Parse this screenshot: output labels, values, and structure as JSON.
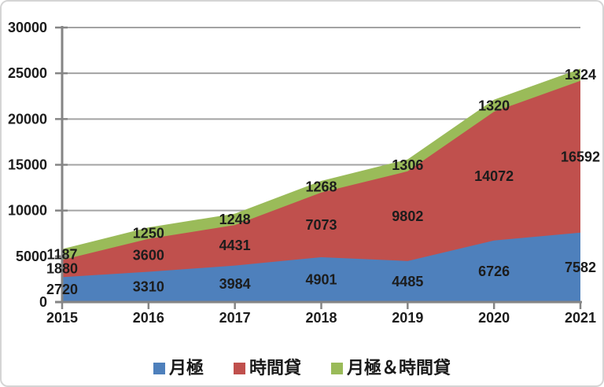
{
  "chart_data": {
    "type": "area",
    "stacked": true,
    "title": "",
    "xlabel": "",
    "ylabel": "",
    "categories": [
      "2015",
      "2016",
      "2017",
      "2018",
      "2019",
      "2020",
      "2021"
    ],
    "series": [
      {
        "name": "月極",
        "color": "#4e80bc",
        "values": [
          2720,
          3310,
          3984,
          4901,
          4485,
          6726,
          7582
        ]
      },
      {
        "name": "時間貸",
        "color": "#c0504d",
        "values": [
          1880,
          3600,
          4431,
          7073,
          9802,
          14072,
          16592
        ]
      },
      {
        "name": "月極＆時間貸",
        "color": "#9abb59",
        "values": [
          1187,
          1250,
          1248,
          1268,
          1306,
          1320,
          1324
        ]
      }
    ],
    "ylim": [
      0,
      30000
    ],
    "ytick_step": 5000,
    "ytick_labels": [
      "0",
      "5000",
      "10000",
      "15000",
      "20000",
      "25000",
      "30000"
    ],
    "grid": true,
    "data_labels": true,
    "legend_position": "bottom"
  },
  "colors": {
    "background": "#ffffff",
    "frame_border": "#d5d5d5",
    "axis": "#858585",
    "gridline": "#a3a3a3",
    "tick": "#858585",
    "label_text": "#1c1c1c"
  }
}
